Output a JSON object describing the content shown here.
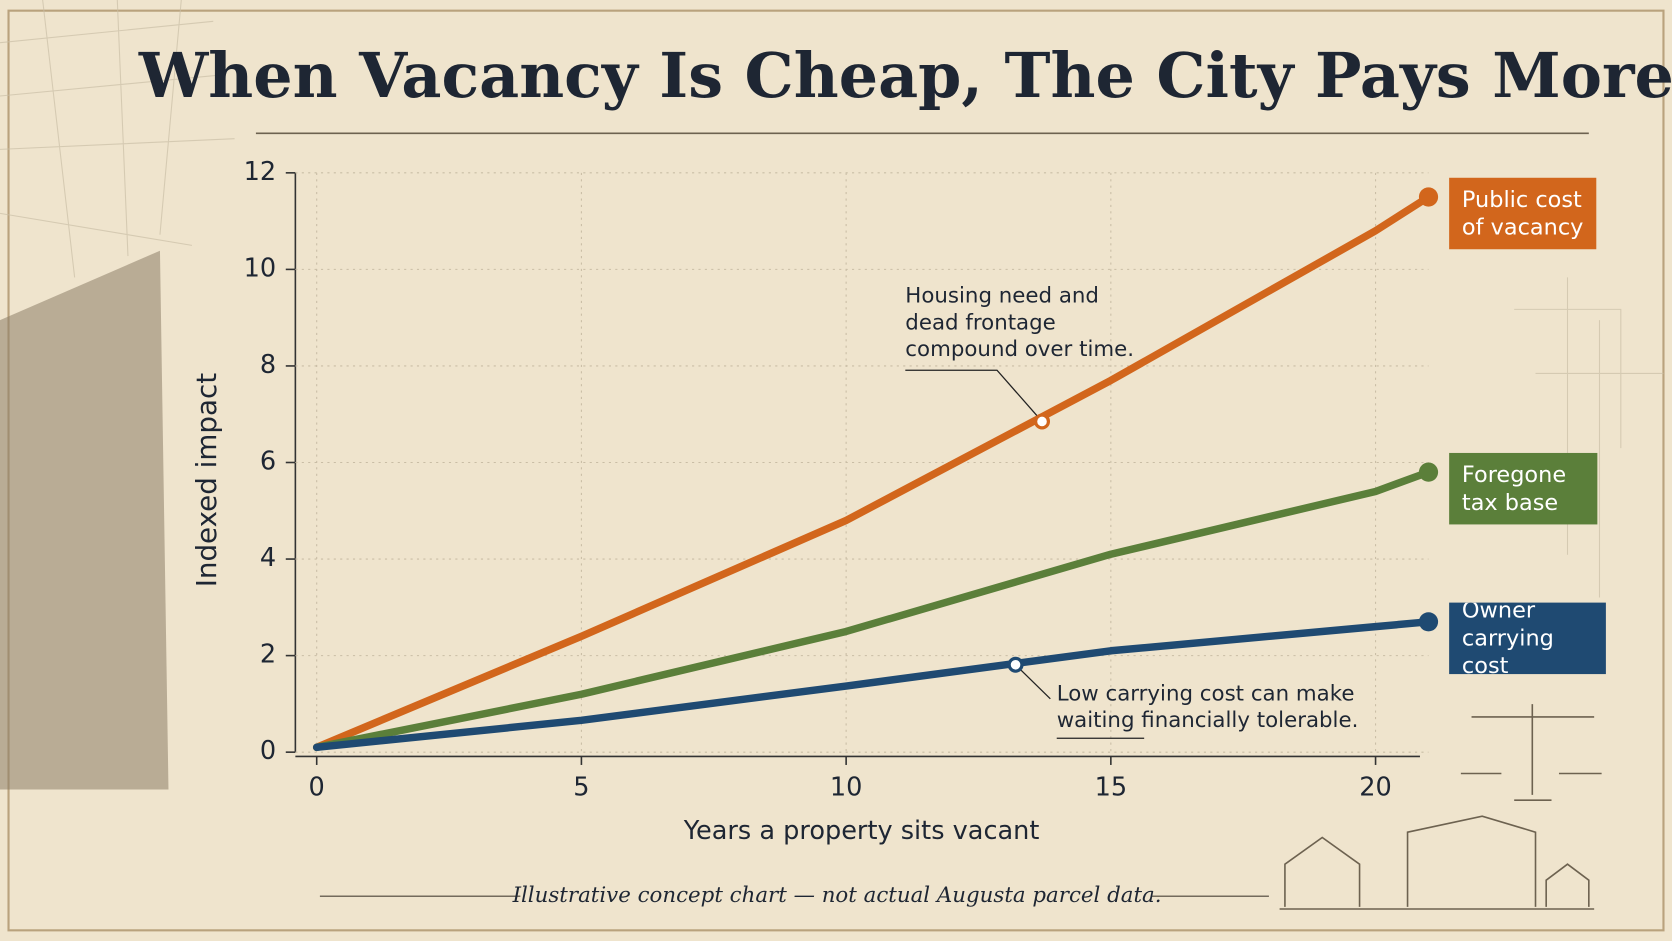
{
  "chart_data": {
    "type": "line",
    "title": "When Vacancy Is Cheap, The City Pays More",
    "x_label": "Years a property sits vacant",
    "y_label": "Indexed impact",
    "x": [
      0,
      5,
      10,
      15,
      20,
      21
    ],
    "series": [
      {
        "name": "Public cost of vacancy",
        "color": "#d2661c",
        "values": [
          0.1,
          2.4,
          4.8,
          7.7,
          10.8,
          11.5
        ]
      },
      {
        "name": "Foregone tax base",
        "color": "#5b7f3a",
        "values": [
          0.1,
          1.2,
          2.5,
          4.1,
          5.4,
          5.8
        ]
      },
      {
        "name": "Owner carrying cost",
        "color": "#1f4a72",
        "values": [
          0.1,
          0.66,
          1.37,
          2.1,
          2.6,
          2.7
        ]
      }
    ],
    "annotations": [
      {
        "series": 0,
        "x": 13.7,
        "y": 6.85,
        "text": [
          "Housing need and",
          "dead frontage",
          "compound over time."
        ]
      },
      {
        "series": 2,
        "x": 13.2,
        "y": 1.81,
        "text": [
          "Low carrying cost can make",
          "waiting financially tolerable."
        ]
      }
    ],
    "xlim": [
      0,
      21
    ],
    "ylim": [
      0,
      12
    ],
    "xticks": [
      0,
      5,
      10,
      15,
      20
    ],
    "yticks": [
      0,
      2,
      4,
      6,
      8,
      10,
      12
    ],
    "grid": true,
    "note": "Illustrative concept chart — not actual Augusta parcel data."
  }
}
